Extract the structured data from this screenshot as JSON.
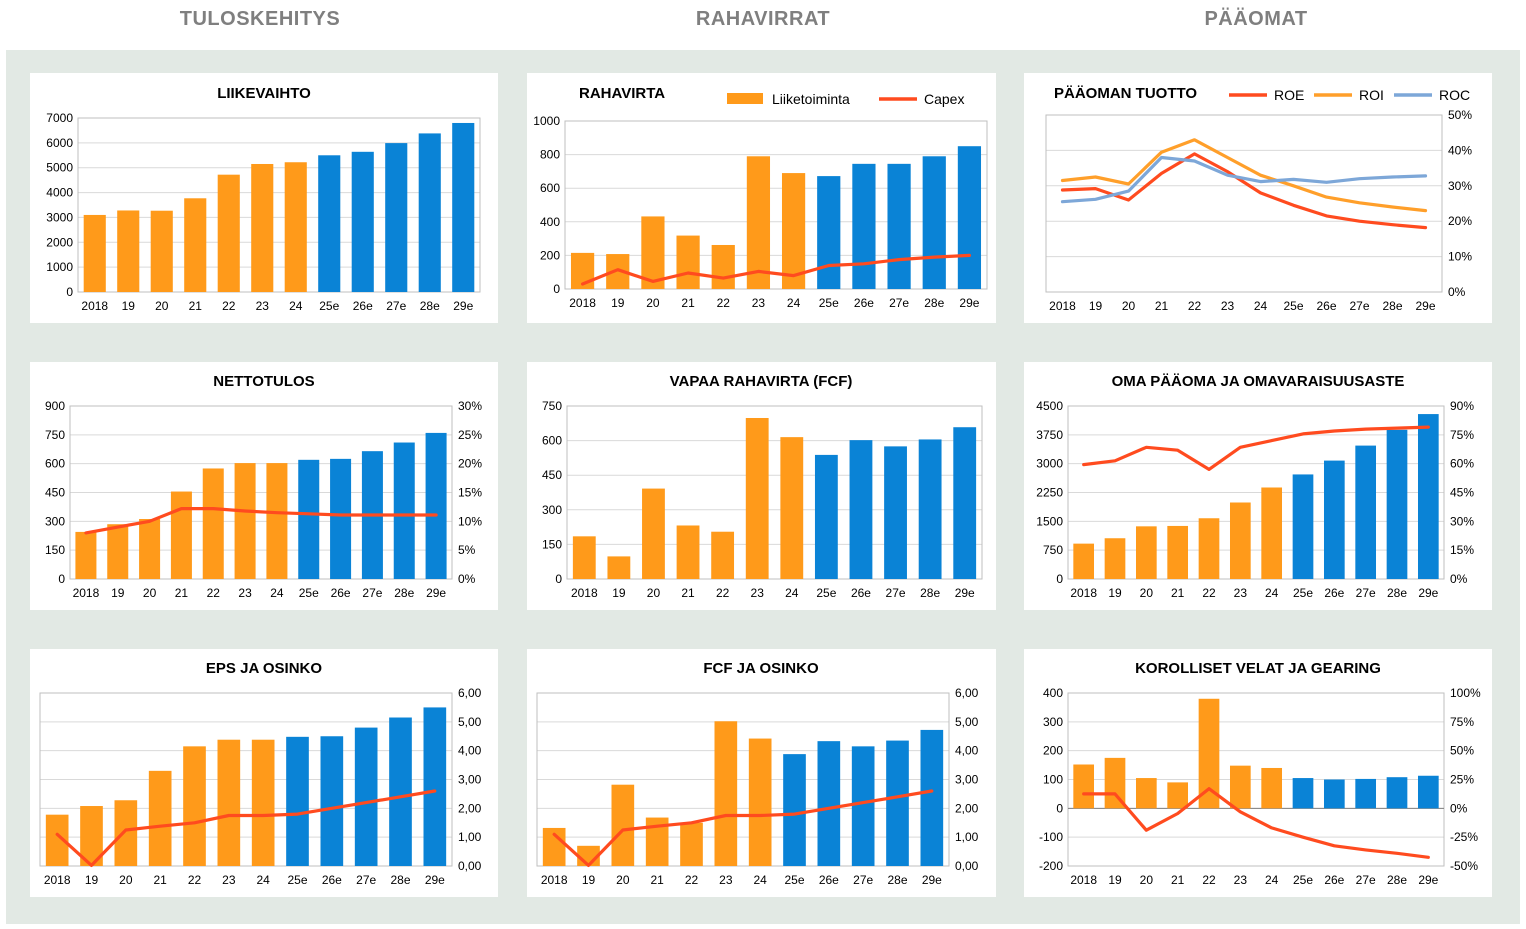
{
  "headers": [
    "TULOSKEHITYS",
    "RAHAVIRRAT",
    "PÄÄOMAT"
  ],
  "colors": {
    "hist": "#ff9a1a",
    "est": "#0a83d6",
    "line": "#ff4b1f",
    "roi": "#ff9f2a",
    "roc": "#7da7d8",
    "grid": "#d9d9d9",
    "neg": "#e00000"
  },
  "chart_data": [
    {
      "id": "liikevaihto",
      "type": "bar",
      "title": "LIIKEVAIHTO",
      "categories": [
        "2018",
        "19",
        "20",
        "21",
        "22",
        "23",
        "24",
        "25e",
        "26e",
        "27e",
        "28e",
        "29e"
      ],
      "estimate_from": 7,
      "values": [
        3100,
        3280,
        3270,
        3770,
        4720,
        5150,
        5220,
        5500,
        5640,
        5990,
        6380,
        6800
      ],
      "ylim": [
        0,
        7000
      ],
      "yticks": [
        "0",
        "1000",
        "2000",
        "3000",
        "4000",
        "5000",
        "6000",
        "7000"
      ],
      "grid": true
    },
    {
      "id": "rahavirta",
      "type": "bar",
      "title": "RAHAVIRTA",
      "categories": [
        "2018",
        "19",
        "20",
        "21",
        "22",
        "23",
        "24",
        "25e",
        "26e",
        "27e",
        "28e",
        "29e"
      ],
      "estimate_from": 7,
      "series": [
        {
          "name": "Liiketoiminta",
          "type": "bar",
          "values": [
            215,
            208,
            432,
            318,
            262,
            790,
            690,
            672,
            745,
            745,
            790,
            850
          ]
        },
        {
          "name": "Capex",
          "type": "line",
          "values": [
            30,
            115,
            45,
            95,
            65,
            105,
            80,
            140,
            150,
            175,
            190,
            200
          ]
        }
      ],
      "ylim": [
        0,
        1000
      ],
      "yticks": [
        "0",
        "200",
        "400",
        "600",
        "800",
        "1000"
      ],
      "legend": "top-right",
      "grid": true
    },
    {
      "id": "paaoman_tuotto",
      "type": "line",
      "title": "PÄÄOMAN TUOTTO",
      "categories": [
        "2018",
        "19",
        "20",
        "21",
        "22",
        "23",
        "24",
        "25e",
        "26e",
        "27e",
        "28e",
        "29e"
      ],
      "series": [
        {
          "name": "ROE",
          "values": [
            28.8,
            29.2,
            26.0,
            33.5,
            39.0,
            34.0,
            28.0,
            24.5,
            21.5,
            20.0,
            19.0,
            18.2
          ]
        },
        {
          "name": "ROI",
          "values": [
            31.5,
            32.5,
            30.5,
            39.5,
            43.0,
            38.0,
            33.0,
            30.0,
            26.8,
            25.2,
            24.0,
            23.0
          ]
        },
        {
          "name": "ROC",
          "values": [
            25.5,
            26.2,
            28.5,
            38.0,
            37.0,
            33.0,
            31.2,
            31.8,
            31.0,
            32.0,
            32.5,
            32.8
          ]
        }
      ],
      "ylim": [
        0,
        50
      ],
      "yticks_right": [
        "0%",
        "10%",
        "20%",
        "30%",
        "40%",
        "50%"
      ],
      "legend": "top-right",
      "grid": true
    },
    {
      "id": "nettotulos",
      "type": "bar",
      "title": "NETTOTULOS",
      "categories": [
        "2018",
        "19",
        "20",
        "21",
        "22",
        "23",
        "24",
        "25e",
        "26e",
        "27e",
        "28e",
        "29e"
      ],
      "estimate_from": 7,
      "series": [
        {
          "name": "",
          "type": "bar",
          "values": [
            245,
            285,
            312,
            455,
            575,
            603,
            603,
            620,
            625,
            665,
            710,
            760
          ]
        },
        {
          "name": "",
          "type": "line",
          "axis": "right",
          "values": [
            8.0,
            9.0,
            10.0,
            12.2,
            12.2,
            11.8,
            11.5,
            11.3,
            11.1,
            11.1,
            11.1,
            11.1
          ]
        }
      ],
      "ylim": [
        0,
        900
      ],
      "yticks": [
        "0",
        "150",
        "300",
        "450",
        "600",
        "750",
        "900"
      ],
      "ylim_right": [
        0,
        30
      ],
      "yticks_right": [
        "0%",
        "5%",
        "10%",
        "15%",
        "20%",
        "25%",
        "30%"
      ],
      "grid": true
    },
    {
      "id": "fcf",
      "type": "bar",
      "title": "VAPAA RAHAVIRTA (FCF)",
      "categories": [
        "2018",
        "19",
        "20",
        "21",
        "22",
        "23",
        "24",
        "25e",
        "26e",
        "27e",
        "28e",
        "29e"
      ],
      "estimate_from": 7,
      "values": [
        185,
        98,
        392,
        232,
        205,
        698,
        615,
        538,
        602,
        575,
        605,
        658
      ],
      "ylim": [
        0,
        750
      ],
      "yticks": [
        "0",
        "150",
        "300",
        "450",
        "600",
        "750"
      ],
      "grid": true
    },
    {
      "id": "oma_paaoma",
      "type": "bar",
      "title": "OMA PÄÄOMA JA OMAVARAISUUSASTE",
      "categories": [
        "2018",
        "19",
        "20",
        "21",
        "22",
        "23",
        "24",
        "25e",
        "26e",
        "27e",
        "28e",
        "29e"
      ],
      "estimate_from": 7,
      "series": [
        {
          "name": "",
          "type": "bar",
          "values": [
            920,
            1060,
            1370,
            1380,
            1580,
            1990,
            2380,
            2720,
            3080,
            3470,
            3880,
            4290
          ]
        },
        {
          "name": "",
          "type": "line",
          "axis": "right",
          "values": [
            59.5,
            61.5,
            68.5,
            67.0,
            57.0,
            68.5,
            72.0,
            75.5,
            77.0,
            78.0,
            78.5,
            79.0
          ]
        }
      ],
      "ylim": [
        0,
        4500
      ],
      "yticks": [
        "0",
        "750",
        "1500",
        "2250",
        "3000",
        "3750",
        "4500"
      ],
      "ylim_right": [
        0,
        90
      ],
      "yticks_right": [
        "0%",
        "15%",
        "30%",
        "45%",
        "60%",
        "75%",
        "90%"
      ],
      "grid": true
    },
    {
      "id": "eps_osinko",
      "type": "bar",
      "title": "EPS JA OSINKO",
      "categories": [
        "2018",
        "19",
        "20",
        "21",
        "22",
        "23",
        "24",
        "25e",
        "26e",
        "27e",
        "28e",
        "29e"
      ],
      "estimate_from": 7,
      "series": [
        {
          "name": "",
          "type": "bar",
          "values": [
            1.78,
            2.08,
            2.28,
            3.3,
            4.15,
            4.38,
            4.38,
            4.48,
            4.5,
            4.8,
            5.15,
            5.5
          ]
        },
        {
          "name": "",
          "type": "line",
          "values": [
            1.1,
            0.02,
            1.25,
            1.38,
            1.5,
            1.75,
            1.75,
            1.8,
            2.0,
            2.2,
            2.4,
            2.6
          ]
        }
      ],
      "ylim": [
        0,
        6
      ],
      "yticks_right": [
        "0,00",
        "1,00",
        "2,00",
        "3,00",
        "4,00",
        "5,00",
        "6,00"
      ],
      "grid": true
    },
    {
      "id": "fcf_osinko",
      "type": "bar",
      "title": "FCF JA OSINKO",
      "categories": [
        "2018",
        "19",
        "20",
        "21",
        "22",
        "23",
        "24",
        "25e",
        "26e",
        "27e",
        "28e",
        "29e"
      ],
      "estimate_from": 7,
      "series": [
        {
          "name": "",
          "type": "bar",
          "values": [
            1.32,
            0.7,
            2.82,
            1.68,
            1.5,
            5.02,
            4.42,
            3.88,
            4.33,
            4.15,
            4.35,
            4.72
          ]
        },
        {
          "name": "",
          "type": "line",
          "values": [
            1.1,
            0.02,
            1.25,
            1.38,
            1.5,
            1.75,
            1.75,
            1.8,
            2.0,
            2.2,
            2.4,
            2.6
          ]
        }
      ],
      "ylim": [
        0,
        6
      ],
      "yticks_right": [
        "0,00",
        "1,00",
        "2,00",
        "3,00",
        "4,00",
        "5,00",
        "6,00"
      ],
      "grid": true
    },
    {
      "id": "korolliset",
      "type": "bar",
      "title": "KOROLLISET VELAT JA GEARING",
      "categories": [
        "2018",
        "19",
        "20",
        "21",
        "22",
        "23",
        "24",
        "25e",
        "26e",
        "27e",
        "28e",
        "29e"
      ],
      "estimate_from": 7,
      "series": [
        {
          "name": "",
          "type": "bar",
          "values": [
            152,
            175,
            105,
            90,
            380,
            148,
            140,
            105,
            100,
            102,
            108,
            113
          ]
        },
        {
          "name": "",
          "type": "line",
          "axis": "right",
          "values": [
            12.5,
            12.5,
            -19.0,
            -4.5,
            17.0,
            -3.0,
            -17.0,
            -25.0,
            -32.5,
            -36.0,
            -39.0,
            -42.5
          ]
        }
      ],
      "ylim": [
        -200,
        400
      ],
      "yticks": [
        "-200",
        "-100",
        "0",
        "100",
        "200",
        "300",
        "400"
      ],
      "ylim_right": [
        -50,
        100
      ],
      "yticks_right": [
        "-50%",
        "-25%",
        "0%",
        "25%",
        "50%",
        "75%",
        "100%"
      ],
      "grid": true
    }
  ]
}
